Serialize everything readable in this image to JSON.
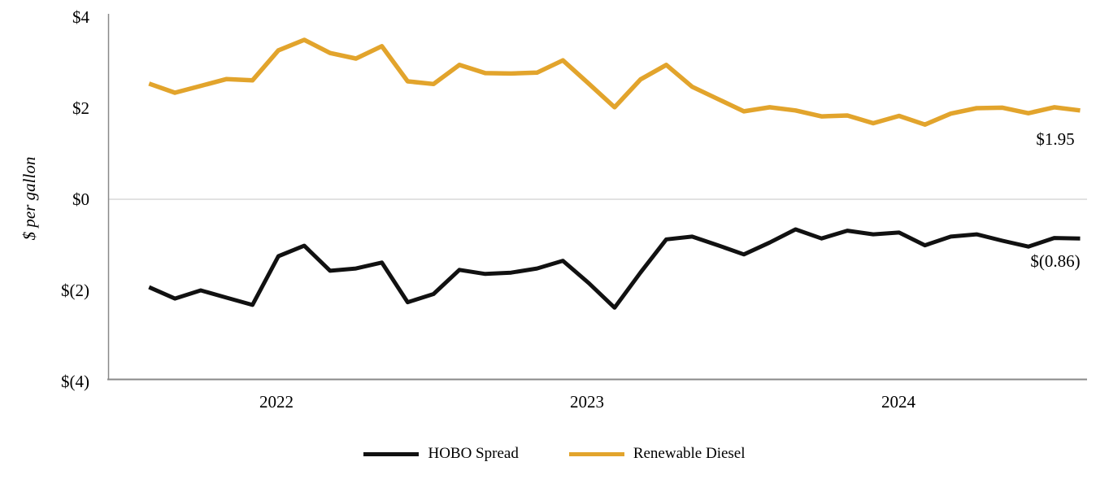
{
  "chart_data": {
    "type": "line",
    "title": "",
    "ylabel": "$ per gallon",
    "ylim": [
      -4,
      4
    ],
    "grid": "zero-line-only",
    "legend_position": "bottom-center",
    "y_ticks": [
      {
        "label": "$4",
        "value": 4
      },
      {
        "label": "$2",
        "value": 2
      },
      {
        "label": "$0",
        "value": 0
      },
      {
        "label": "$(2)",
        "value": -2
      },
      {
        "label": "$(4)",
        "value": -4
      }
    ],
    "x_ticks": [
      {
        "label": "2022",
        "month_index": 5
      },
      {
        "label": "2023",
        "month_index": 17
      },
      {
        "label": "2024",
        "month_index": 29
      }
    ],
    "x": [
      "2021-08",
      "2021-09",
      "2021-10",
      "2021-11",
      "2021-12",
      "2022-01",
      "2022-02",
      "2022-03",
      "2022-04",
      "2022-05",
      "2022-06",
      "2022-07",
      "2022-08",
      "2022-09",
      "2022-10",
      "2022-11",
      "2022-12",
      "2023-01",
      "2023-02",
      "2023-03",
      "2023-04",
      "2023-05",
      "2023-06",
      "2023-07",
      "2023-08",
      "2023-09",
      "2023-10",
      "2023-11",
      "2023-12",
      "2024-01",
      "2024-02",
      "2024-03",
      "2024-04",
      "2024-05",
      "2024-06",
      "2024-07",
      "2024-08"
    ],
    "series": [
      {
        "name": "HOBO Spread",
        "color": "#111111",
        "end_label": "$(0.86)",
        "values": [
          -1.93,
          -2.18,
          -2.0,
          -2.16,
          -2.32,
          -1.25,
          -1.02,
          -1.57,
          -1.52,
          -1.39,
          -2.26,
          -2.08,
          -1.55,
          -1.64,
          -1.61,
          -1.52,
          -1.35,
          -1.84,
          -2.38,
          -1.61,
          -0.88,
          -0.82,
          -1.01,
          -1.21,
          -0.95,
          -0.66,
          -0.86,
          -0.69,
          -0.77,
          -0.73,
          -1.01,
          -0.82,
          -0.77,
          -0.91,
          -1.04,
          -0.85,
          -0.86
        ]
      },
      {
        "name": "Renewable Diesel",
        "color": "#e2a42c",
        "end_label": "$1.95",
        "values": [
          2.54,
          2.34,
          2.49,
          2.64,
          2.61,
          3.27,
          3.5,
          3.21,
          3.09,
          3.36,
          2.59,
          2.53,
          2.95,
          2.77,
          2.76,
          2.78,
          3.05,
          2.54,
          2.02,
          2.63,
          2.95,
          2.47,
          2.2,
          1.93,
          2.02,
          1.95,
          1.82,
          1.84,
          1.67,
          1.83,
          1.64,
          1.88,
          2.0,
          2.01,
          1.89,
          2.02,
          1.95
        ]
      }
    ],
    "axis_colors": {
      "axis_line": "#898989",
      "zero_gridline": "#d9d9d9"
    }
  }
}
